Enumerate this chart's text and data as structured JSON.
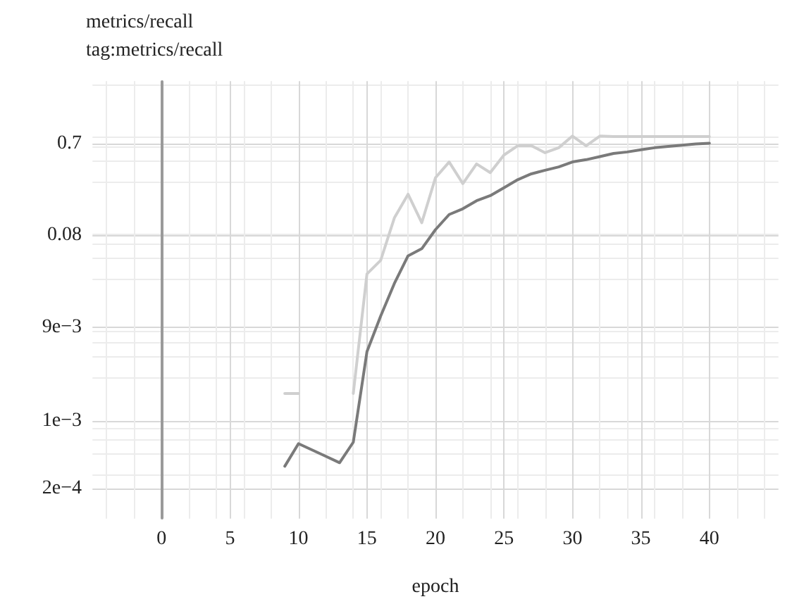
{
  "chart_data": {
    "type": "line",
    "title": "metrics/recall",
    "subtitle": "tag:metrics/recall",
    "xlabel": "epoch",
    "x": [
      9,
      10,
      11,
      12,
      13,
      14,
      15,
      16,
      17,
      18,
      19,
      20,
      21,
      22,
      23,
      24,
      25,
      26,
      27,
      28,
      29,
      30,
      31,
      32,
      33,
      34,
      35,
      36,
      37,
      38,
      39,
      40
    ],
    "series": [
      {
        "color": "#cfcfcf",
        "values": [
          0.0019,
          0.0019,
          null,
          null,
          null,
          0.0019,
          0.032,
          0.044,
          0.12,
          0.21,
          0.107,
          0.31,
          0.45,
          0.27,
          0.43,
          0.35,
          0.53,
          0.66,
          0.66,
          0.56,
          0.63,
          0.83,
          0.66,
          0.83,
          0.82,
          0.82,
          0.82,
          0.82,
          0.82,
          0.82,
          0.82,
          0.82
        ]
      },
      {
        "color": "#7a7a7a",
        "values": [
          0.00034,
          0.00058,
          0.0005,
          0.00043,
          0.00037,
          0.0006,
          0.0051,
          0.0118,
          0.0255,
          0.049,
          0.058,
          0.091,
          0.13,
          0.149,
          0.18,
          0.203,
          0.245,
          0.296,
          0.34,
          0.37,
          0.4,
          0.45,
          0.475,
          0.51,
          0.55,
          0.57,
          0.6,
          0.63,
          0.65,
          0.67,
          0.69,
          0.7
        ]
      }
    ],
    "log": "y",
    "xlim": [
      -5,
      45
    ],
    "xticks": [
      0,
      5,
      10,
      15,
      20,
      25,
      30,
      35,
      40
    ],
    "ylim": [
      0.0001,
      3
    ],
    "yticks": [
      {
        "value": 0.0002,
        "label": "2e−4"
      },
      {
        "value": 0.001,
        "label": "1e−3"
      },
      {
        "value": 0.009,
        "label": "9e−3"
      },
      0.08,
      0.7
    ],
    "ref_lines": [
      {
        "axis": "x",
        "value": 0,
        "color": "#9a9a9a"
      }
    ],
    "grid": true,
    "marker": "none",
    "line_style": "solid"
  }
}
